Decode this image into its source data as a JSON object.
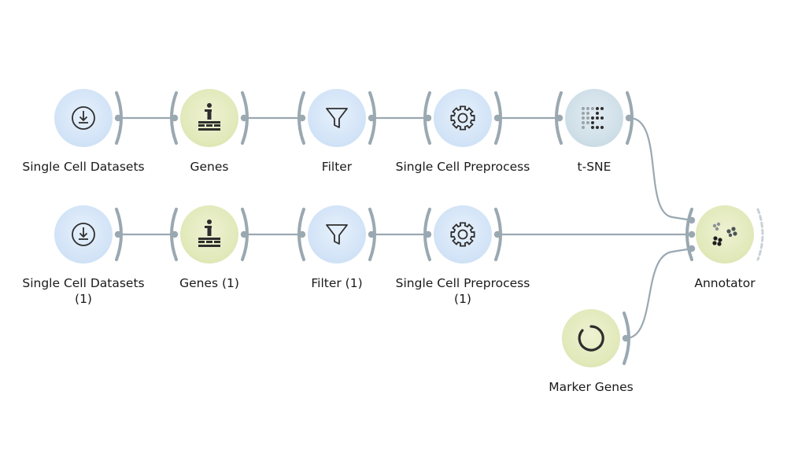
{
  "colors": {
    "link": "#9aa8b1",
    "bracket": "#9aa8b1",
    "blue_node": "#d3e4f7",
    "green_node": "#e2e9bb",
    "teal_node": "#cfdfe8",
    "icon": "#2e2e2e"
  },
  "nodes": [
    {
      "id": "scd1",
      "label": "Single Cell Datasets",
      "icon": "download-icon",
      "color": "blue"
    },
    {
      "id": "genes1",
      "label": "Genes",
      "icon": "info-table-icon",
      "color": "green"
    },
    {
      "id": "filter1",
      "label": "Filter",
      "icon": "funnel-icon",
      "color": "blue"
    },
    {
      "id": "prep1",
      "label": "Single Cell Preprocess",
      "icon": "gear-icon",
      "color": "blue"
    },
    {
      "id": "tsne",
      "label": "t-SNE",
      "icon": "tsne-dots-icon",
      "color": "teal"
    },
    {
      "id": "scd2",
      "label": "Single Cell Datasets\n(1)",
      "icon": "download-icon",
      "color": "blue"
    },
    {
      "id": "genes2",
      "label": "Genes (1)",
      "icon": "info-table-icon",
      "color": "green"
    },
    {
      "id": "filter2",
      "label": "Filter (1)",
      "icon": "funnel-icon",
      "color": "blue"
    },
    {
      "id": "prep2",
      "label": "Single Cell Preprocess\n(1)",
      "icon": "gear-icon",
      "color": "blue"
    },
    {
      "id": "annot",
      "label": "Annotator",
      "icon": "scatter-clusters-icon",
      "color": "green"
    },
    {
      "id": "marker",
      "label": "Marker Genes",
      "icon": "ring-icon",
      "color": "green"
    }
  ],
  "links": [
    [
      "scd1",
      "genes1"
    ],
    [
      "genes1",
      "filter1"
    ],
    [
      "filter1",
      "prep1"
    ],
    [
      "prep1",
      "tsne"
    ],
    [
      "tsne",
      "annot"
    ],
    [
      "scd2",
      "genes2"
    ],
    [
      "genes2",
      "filter2"
    ],
    [
      "filter2",
      "prep2"
    ],
    [
      "prep2",
      "annot"
    ],
    [
      "marker",
      "annot"
    ]
  ]
}
